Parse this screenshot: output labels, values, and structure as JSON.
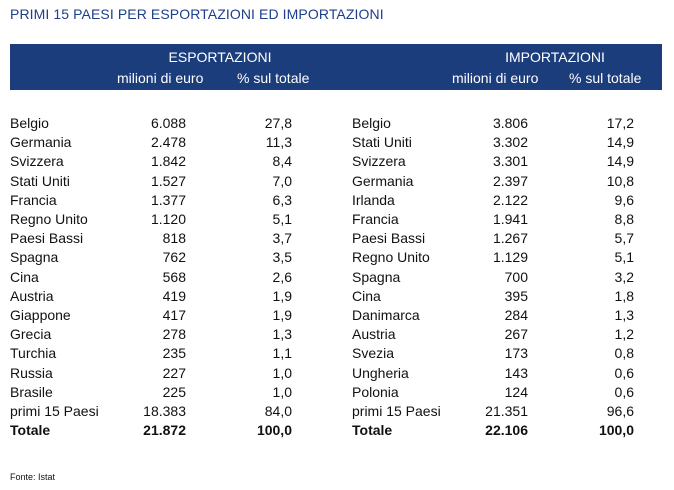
{
  "title": "PRIMI 15 PAESI PER ESPORTAZIONI ED IMPORTAZIONI",
  "export": {
    "heading": "ESPORTAZIONI",
    "col_value": "milioni di euro",
    "col_pct": "% sul totale",
    "rows": [
      {
        "country": "Belgio",
        "value": "6.088",
        "pct": "27,8"
      },
      {
        "country": "Germania",
        "value": "2.478",
        "pct": "11,3"
      },
      {
        "country": "Svizzera",
        "value": "1.842",
        "pct": "8,4"
      },
      {
        "country": "Stati Uniti",
        "value": "1.527",
        "pct": "7,0"
      },
      {
        "country": "Francia",
        "value": "1.377",
        "pct": "6,3"
      },
      {
        "country": "Regno Unito",
        "value": "1.120",
        "pct": "5,1"
      },
      {
        "country": "Paesi Bassi",
        "value": "818",
        "pct": "3,7"
      },
      {
        "country": "Spagna",
        "value": "762",
        "pct": "3,5"
      },
      {
        "country": "Cina",
        "value": "568",
        "pct": "2,6"
      },
      {
        "country": "Austria",
        "value": "419",
        "pct": "1,9"
      },
      {
        "country": "Giappone",
        "value": "417",
        "pct": "1,9"
      },
      {
        "country": "Grecia",
        "value": "278",
        "pct": "1,3"
      },
      {
        "country": "Turchia",
        "value": "235",
        "pct": "1,1"
      },
      {
        "country": "Russia",
        "value": "227",
        "pct": "1,0"
      },
      {
        "country": "Brasile",
        "value": "225",
        "pct": "1,0"
      },
      {
        "country": "primi 15 Paesi",
        "value": "18.383",
        "pct": "84,0"
      },
      {
        "country": "Totale",
        "value": "21.872",
        "pct": "100,0",
        "bold": true
      }
    ]
  },
  "import": {
    "heading": "IMPORTAZIONI",
    "col_value": "milioni di euro",
    "col_pct": "% sul totale",
    "rows": [
      {
        "country": "Belgio",
        "value": "3.806",
        "pct": "17,2"
      },
      {
        "country": "Stati Uniti",
        "value": "3.302",
        "pct": "14,9"
      },
      {
        "country": "Svizzera",
        "value": "3.301",
        "pct": "14,9"
      },
      {
        "country": "Germania",
        "value": "2.397",
        "pct": "10,8"
      },
      {
        "country": "Irlanda",
        "value": "2.122",
        "pct": "9,6"
      },
      {
        "country": "Francia",
        "value": "1.941",
        "pct": "8,8"
      },
      {
        "country": "Paesi Bassi",
        "value": "1.267",
        "pct": "5,7"
      },
      {
        "country": "Regno Unito",
        "value": "1.129",
        "pct": "5,1"
      },
      {
        "country": "Spagna",
        "value": "700",
        "pct": "3,2"
      },
      {
        "country": "Cina",
        "value": "395",
        "pct": "1,8"
      },
      {
        "country": "Danimarca",
        "value": "284",
        "pct": "1,3"
      },
      {
        "country": "Austria",
        "value": "267",
        "pct": "1,2"
      },
      {
        "country": "Svezia",
        "value": "173",
        "pct": "0,8"
      },
      {
        "country": "Ungheria",
        "value": "143",
        "pct": "0,6"
      },
      {
        "country": "Polonia",
        "value": "124",
        "pct": "0,6"
      },
      {
        "country": "primi 15 Paesi",
        "value": "21.351",
        "pct": "96,6"
      },
      {
        "country": "Totale",
        "value": "22.106",
        "pct": "100,0",
        "bold": true
      }
    ]
  },
  "source": "Fonte: Istat",
  "colors": {
    "header_bg": "#1c3d7c",
    "title": "#1d3f8a"
  }
}
